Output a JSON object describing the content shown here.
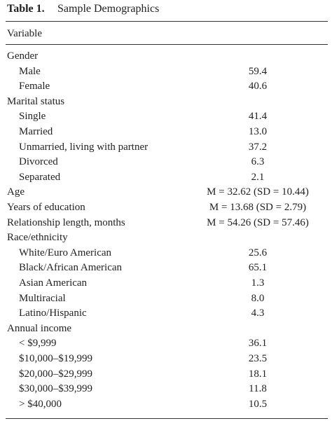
{
  "table": {
    "label": "Table 1.",
    "title": "Sample Demographics",
    "header": "Variable",
    "rows": [
      {
        "label": "Gender",
        "items": [
          {
            "label": "Male",
            "value": "59.4"
          },
          {
            "label": "Female",
            "value": "40.6"
          }
        ]
      },
      {
        "label": "Marital status",
        "items": [
          {
            "label": "Single",
            "value": "41.4"
          },
          {
            "label": "Married",
            "value": "13.0"
          },
          {
            "label": "Unmarried, living with partner",
            "value": "37.2"
          },
          {
            "label": "Divorced",
            "value": "6.3"
          },
          {
            "label": "Separated",
            "value": "2.1"
          }
        ]
      },
      {
        "label": "Age",
        "value": "M = 32.62 (SD = 10.44)"
      },
      {
        "label": "Years of education",
        "value": "M = 13.68 (SD = 2.79)"
      },
      {
        "label": "Relationship length, months",
        "value": "M = 54.26 (SD = 57.46)"
      },
      {
        "label": "Race/ethnicity",
        "items": [
          {
            "label": "White/Euro American",
            "value": "25.6"
          },
          {
            "label": "Black/African American",
            "value": "65.1"
          },
          {
            "label": "Asian American",
            "value": "1.3"
          },
          {
            "label": "Multiracial",
            "value": "8.0"
          },
          {
            "label": "Latino/Hispanic",
            "value": "4.3"
          }
        ]
      },
      {
        "label": "Annual income",
        "items": [
          {
            "label": "< $9,999",
            "value": "36.1"
          },
          {
            "label": "$10,000–$19,999",
            "value": "23.5"
          },
          {
            "label": "$20,000–$29,999",
            "value": "18.1"
          },
          {
            "label": "$30,000–$39,999",
            "value": "11.8"
          },
          {
            "label": "> $40,000",
            "value": "10.5"
          }
        ]
      }
    ]
  }
}
